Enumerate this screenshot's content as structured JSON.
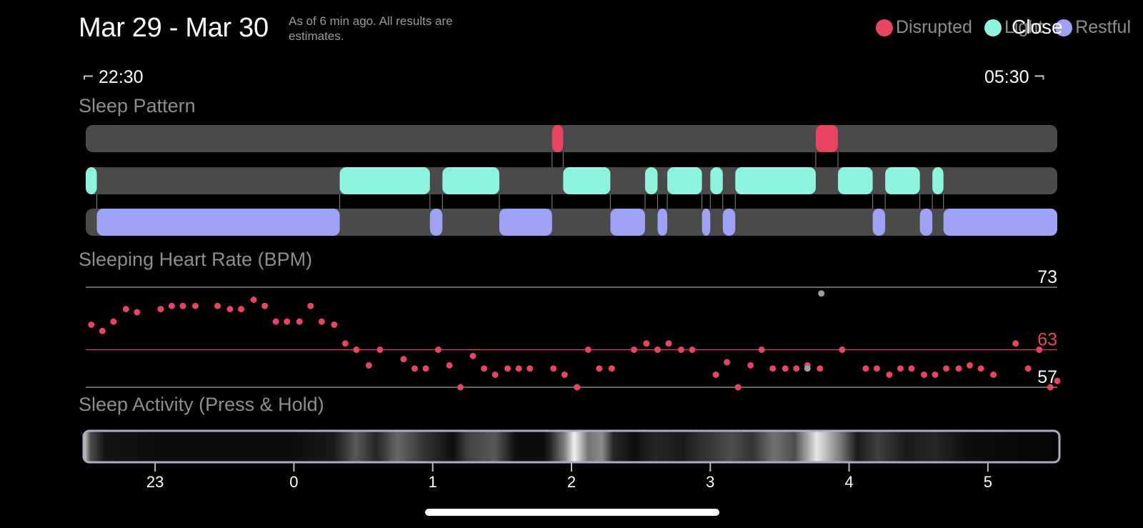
{
  "header": {
    "title": "Mar 29 - Mar 30",
    "subtitle": "As of 6 min ago. All results are estimates.",
    "close_label": "Close"
  },
  "legend": [
    {
      "label": "Disrupted",
      "color": "#e8435f"
    },
    {
      "label": "Light",
      "color": "#8ef3df"
    },
    {
      "label": "Restful",
      "color": "#9ea2f4"
    }
  ],
  "time_range": {
    "start": "22:30",
    "end": "05:30"
  },
  "sections": {
    "sleep_pattern": "Sleep Pattern",
    "heart_rate": "Sleeping Heart Rate (BPM)",
    "activity": "Sleep Activity (Press & Hold)"
  },
  "colors": {
    "track": "#4a4a4a",
    "disrupted": "#e8435f",
    "light": "#8ef3df",
    "restful": "#9ea2f4",
    "heart_dot": "#e8435f",
    "outlier_dot": "#a0a0a0",
    "avg_line": "#e8435f",
    "grid_line": "#8a8a8a"
  },
  "chart_data": [
    {
      "type": "bar",
      "name": "",
      "x_unit": "hours after 22:30",
      "x_range": [
        0,
        7
      ],
      "stages": {
        "disrupted": [
          [
            3.36,
            3.44
          ],
          [
            5.26,
            5.42
          ]
        ],
        "light": [
          [
            0.0,
            0.08
          ],
          [
            1.83,
            2.48
          ],
          [
            2.57,
            2.98
          ],
          [
            3.44,
            3.78
          ],
          [
            4.03,
            4.12
          ],
          [
            4.19,
            4.44
          ],
          [
            4.5,
            4.59
          ],
          [
            4.68,
            5.26
          ],
          [
            5.42,
            5.67
          ],
          [
            5.76,
            6.01
          ],
          [
            6.1,
            6.18
          ]
        ],
        "restful": [
          [
            0.08,
            1.83
          ],
          [
            2.48,
            2.57
          ],
          [
            2.98,
            3.36
          ],
          [
            3.78,
            4.03
          ],
          [
            4.12,
            4.19
          ],
          [
            4.44,
            4.5
          ],
          [
            4.59,
            4.68
          ],
          [
            5.67,
            5.76
          ],
          [
            6.01,
            6.1
          ],
          [
            6.18,
            7.0
          ]
        ]
      }
    },
    {
      "type": "scatter",
      "name": "",
      "ylim": [
        57,
        73
      ],
      "reference_lines": {
        "max": 73,
        "avg": 63,
        "min": 57
      },
      "x_unit": "hours after 22:30",
      "points": [
        [
          0.04,
          67
        ],
        [
          0.12,
          66
        ],
        [
          0.2,
          67.5
        ],
        [
          0.29,
          69.5
        ],
        [
          0.37,
          69
        ],
        [
          0.54,
          69.5
        ],
        [
          0.62,
          70
        ],
        [
          0.7,
          70
        ],
        [
          0.79,
          70
        ],
        [
          0.95,
          70
        ],
        [
          1.04,
          69.5
        ],
        [
          1.12,
          69.5
        ],
        [
          1.21,
          71
        ],
        [
          1.29,
          70
        ],
        [
          1.37,
          67.5
        ],
        [
          1.45,
          67.5
        ],
        [
          1.54,
          67.5
        ],
        [
          1.62,
          70
        ],
        [
          1.7,
          67.5
        ],
        [
          1.79,
          67
        ],
        [
          1.87,
          64
        ],
        [
          1.95,
          63
        ],
        [
          2.04,
          60.5
        ],
        [
          2.12,
          63
        ],
        [
          2.29,
          61.5
        ],
        [
          2.37,
          60
        ],
        [
          2.45,
          60
        ],
        [
          2.54,
          63
        ],
        [
          2.62,
          60.5
        ],
        [
          2.7,
          57
        ],
        [
          2.79,
          62
        ],
        [
          2.87,
          60
        ],
        [
          2.95,
          59
        ],
        [
          3.04,
          60
        ],
        [
          3.12,
          60
        ],
        [
          3.2,
          60
        ],
        [
          3.37,
          60
        ],
        [
          3.45,
          59
        ],
        [
          3.54,
          57
        ],
        [
          3.62,
          63
        ],
        [
          3.7,
          60
        ],
        [
          3.79,
          60
        ],
        [
          3.95,
          63
        ],
        [
          4.04,
          64
        ],
        [
          4.12,
          63
        ],
        [
          4.2,
          64
        ],
        [
          4.29,
          63
        ],
        [
          4.37,
          63
        ],
        [
          4.54,
          59
        ],
        [
          4.62,
          61
        ],
        [
          4.7,
          57
        ],
        [
          4.79,
          60.5
        ],
        [
          4.87,
          63
        ],
        [
          4.95,
          60
        ],
        [
          5.04,
          60
        ],
        [
          5.12,
          60
        ],
        [
          5.2,
          60.5
        ],
        [
          5.29,
          60
        ],
        [
          5.45,
          63
        ],
        [
          5.62,
          60
        ],
        [
          5.7,
          60
        ],
        [
          5.79,
          59
        ],
        [
          5.87,
          60
        ],
        [
          5.95,
          60
        ],
        [
          6.04,
          59
        ],
        [
          6.12,
          59
        ],
        [
          6.2,
          60
        ],
        [
          6.29,
          60
        ],
        [
          6.37,
          60.5
        ],
        [
          6.45,
          60
        ],
        [
          6.54,
          59
        ],
        [
          6.7,
          64
        ],
        [
          6.79,
          60
        ],
        [
          6.87,
          63
        ],
        [
          6.95,
          57
        ],
        [
          7.0,
          58
        ]
      ],
      "outliers": [
        [
          5.3,
          72
        ],
        [
          5.2,
          60
        ]
      ]
    },
    {
      "type": "heatmap",
      "name": "",
      "x_ticks": [
        "23",
        "0",
        "1",
        "2",
        "3",
        "4",
        "5"
      ],
      "tick_hours": [
        0.5,
        1.5,
        2.5,
        3.5,
        4.5,
        5.5,
        6.5
      ],
      "x_unit": "hours after 22:30",
      "intensity": [
        [
          0.0,
          0.85
        ],
        [
          0.05,
          0.3
        ],
        [
          0.15,
          0.08
        ],
        [
          0.5,
          0.05
        ],
        [
          0.85,
          0.05
        ],
        [
          1.1,
          0.05
        ],
        [
          1.5,
          0.05
        ],
        [
          1.8,
          0.1
        ],
        [
          1.95,
          0.35
        ],
        [
          2.1,
          0.15
        ],
        [
          2.25,
          0.4
        ],
        [
          2.45,
          0.2
        ],
        [
          2.65,
          0.05
        ],
        [
          2.75,
          0.25
        ],
        [
          2.95,
          0.35
        ],
        [
          3.1,
          0.05
        ],
        [
          3.3,
          0.05
        ],
        [
          3.35,
          0.15
        ],
        [
          3.45,
          0.5
        ],
        [
          3.52,
          0.95
        ],
        [
          3.62,
          0.45
        ],
        [
          3.72,
          0.55
        ],
        [
          3.8,
          0.15
        ],
        [
          3.95,
          0.05
        ],
        [
          4.1,
          0.15
        ],
        [
          4.3,
          0.1
        ],
        [
          4.45,
          0.2
        ],
        [
          4.65,
          0.3
        ],
        [
          4.8,
          0.2
        ],
        [
          4.95,
          0.45
        ],
        [
          5.1,
          0.3
        ],
        [
          5.26,
          0.9
        ],
        [
          5.42,
          0.5
        ],
        [
          5.55,
          0.1
        ],
        [
          5.7,
          0.25
        ],
        [
          5.9,
          0.1
        ],
        [
          6.1,
          0.15
        ],
        [
          6.35,
          0.05
        ],
        [
          7.0,
          0.02
        ]
      ]
    }
  ]
}
